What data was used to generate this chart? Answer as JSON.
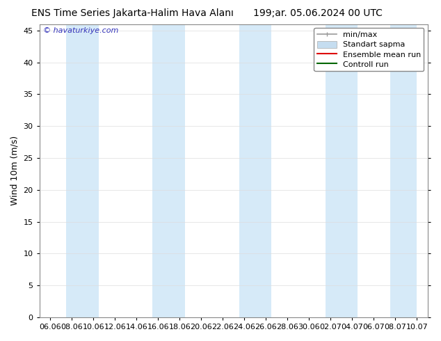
{
  "title_left": "ENS Time Series Jakarta-Halim Hava Alanı",
  "title_right": "199;ar. 05.06.2024 00 UTC",
  "ylabel": "Wind 10m (m/s)",
  "watermark": "© havaturkiye.com",
  "watermark_color": "#3333bb",
  "ylim": [
    0,
    46
  ],
  "yticks": [
    0,
    5,
    10,
    15,
    20,
    25,
    30,
    35,
    40,
    45
  ],
  "bg_color": "#ffffff",
  "plot_bg_color": "#ffffff",
  "band_color": "#d6eaf8",
  "xtick_labels": [
    "06.06",
    "08.06",
    "10.06",
    "12.06",
    "14.06",
    "16.06",
    "18.06",
    "20.06",
    "22.06",
    "24.06",
    "26.06",
    "28.06",
    "30.06",
    "02.07",
    "04.07",
    "06.07",
    "08.07",
    "10.07"
  ],
  "legend_labels": [
    "min/max",
    "Standart sapma",
    "Ensemble mean run",
    "Controll run"
  ],
  "legend_colors": [
    "#999999",
    "#c5ddf0",
    "#dd0000",
    "#006600"
  ],
  "title_fontsize": 10,
  "ylabel_fontsize": 9,
  "tick_fontsize": 8,
  "watermark_fontsize": 8,
  "legend_fontsize": 8
}
